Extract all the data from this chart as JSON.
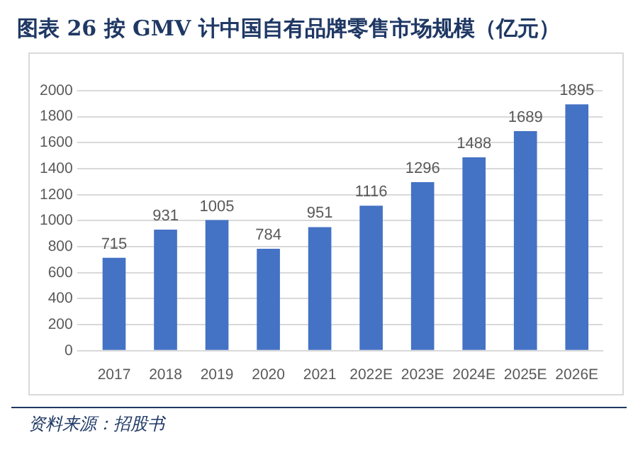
{
  "chart_data": {
    "type": "bar",
    "title": "图表 26   按 GMV 计中国自有品牌零售市场规模（亿元）",
    "categories": [
      "2017",
      "2018",
      "2019",
      "2020",
      "2021",
      "2022E",
      "2023E",
      "2024E",
      "2025E",
      "2026E"
    ],
    "values": [
      715,
      931,
      1005,
      784,
      951,
      1116,
      1296,
      1488,
      1689,
      1895
    ],
    "color": "#4472c4",
    "ylim": [
      0,
      2000
    ],
    "yticks": [
      0,
      200,
      400,
      600,
      800,
      1000,
      1200,
      1400,
      1600,
      1800,
      2000
    ],
    "grid": "y",
    "data_labels": true,
    "legend": false,
    "annotations": [
      "资料来源：招股书"
    ]
  }
}
